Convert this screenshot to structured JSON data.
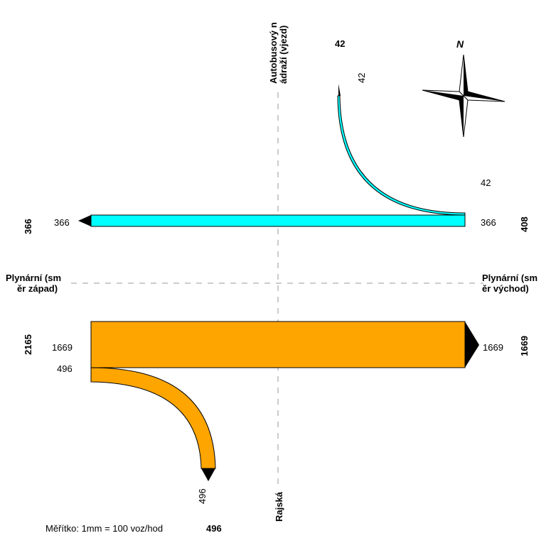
{
  "roads": {
    "north": "Autobusový nádraží (vjezd)",
    "north_line1": "Autobusový n",
    "north_line2": "ádraží (vjezd)",
    "west_line1": "Plynární (sm",
    "west_line2": "ěr západ)",
    "east_line1": "Plynární (sm",
    "east_line2": "ěr východ)",
    "south": "Rajská"
  },
  "totals": {
    "north": "42",
    "west_upper": "366",
    "east_upper": "408",
    "west_lower": "2165",
    "east_lower": "1669",
    "south": "496"
  },
  "flow_labels": {
    "north_right_turn": "42",
    "east_turn_end": "42",
    "east_through_cyan": "366",
    "west_through_cyan": "366",
    "west_through_orange": "1669",
    "west_turn_orange": "496",
    "east_through_orange": "1669",
    "south_turn_end": "496"
  },
  "compass": {
    "north": "N"
  },
  "scale": {
    "text": "Měřítko: 1mm = 100 voz/hod"
  },
  "colors": {
    "cyan_flow": "#00ffff",
    "orange_flow": "#ffa500",
    "arrow": "#000000",
    "guide": "#999999"
  }
}
